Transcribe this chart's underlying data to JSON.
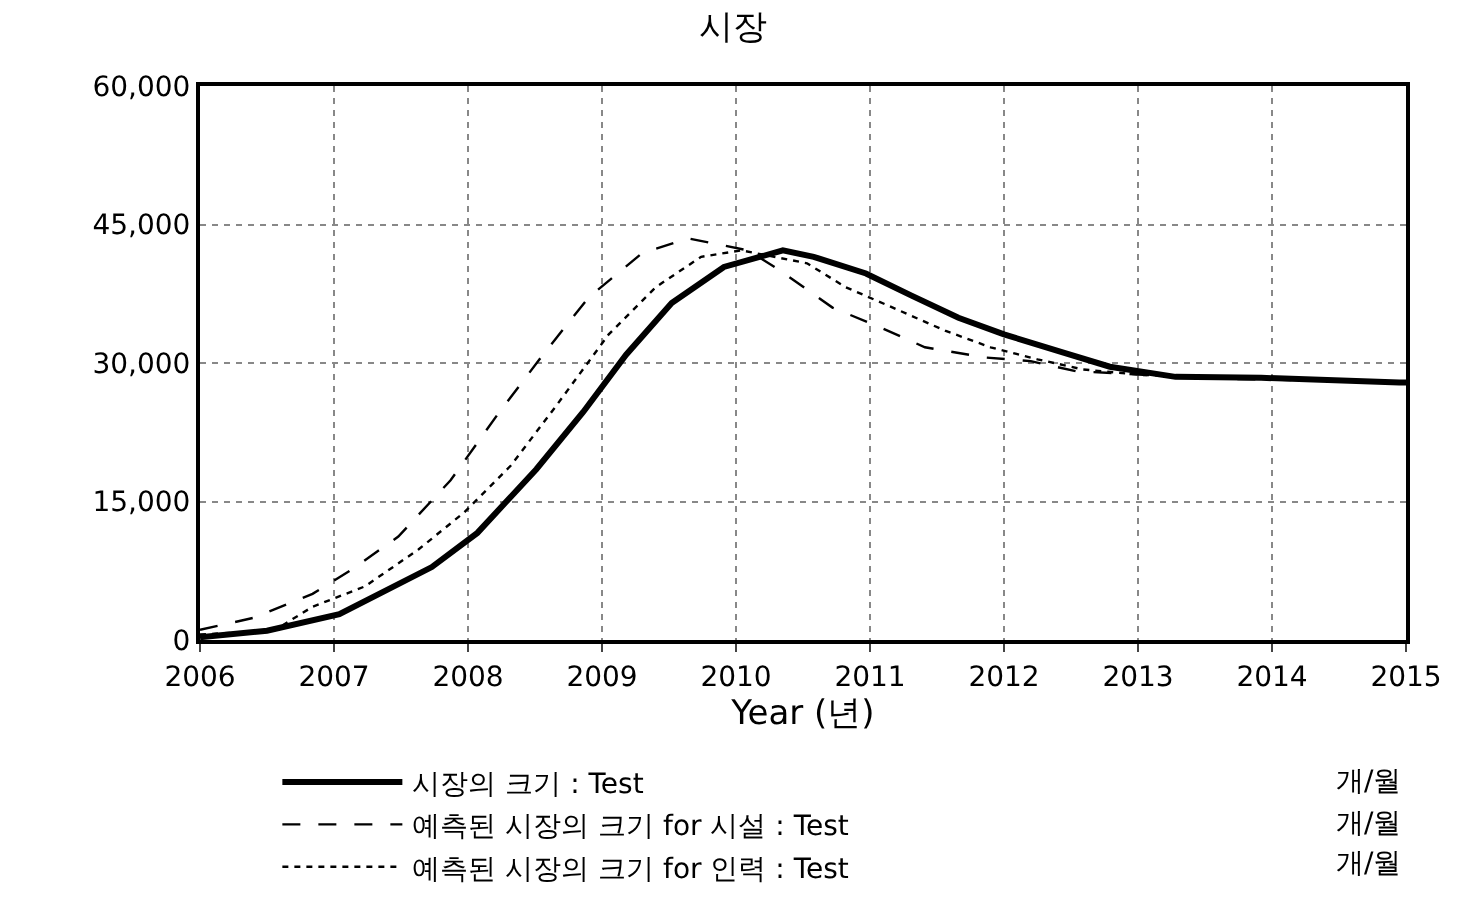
{
  "chart_data": {
    "type": "line",
    "title": "시장",
    "xlabel": "Year (년)",
    "xlim": [
      2006,
      2015
    ],
    "xticks": [
      2006,
      2007,
      2008,
      2009,
      2010,
      2011,
      2012,
      2013,
      2014,
      2015
    ],
    "ylim": [
      0,
      60000
    ],
    "yticks": [
      {
        "value": 0,
        "label": "0"
      },
      {
        "value": 15000,
        "label": "15,000"
      },
      {
        "value": 30000,
        "label": "30,000"
      },
      {
        "value": 45000,
        "label": "45,000"
      },
      {
        "value": 60000,
        "label": "60,000"
      }
    ],
    "grid": true,
    "legend": "bottom",
    "marker": "none",
    "annotations": [
      "개/월",
      "개/월",
      "개/월"
    ],
    "series": [
      {
        "name": "시장의 크기 : Test",
        "color": "#000000",
        "line_style": "solid",
        "x": [
          2006,
          2006.5,
          2007.04,
          2007.73,
          2008.07,
          2008.51,
          2008.86,
          2009.18,
          2009.52,
          2009.91,
          2010.35,
          2010.58,
          2010.97,
          2011.31,
          2011.66,
          2012.0,
          2012.45,
          2012.79,
          2013.28,
          2013.92,
          2014.95,
          2015
        ],
        "values": [
          300,
          1000,
          2800,
          7900,
          11600,
          18500,
          24700,
          30900,
          36500,
          40400,
          42200,
          41500,
          39700,
          37300,
          34900,
          33100,
          31100,
          29600,
          28500,
          28400,
          27900,
          27900
        ]
      },
      {
        "name": "예측된 시장의 크기 for 시설 : Test",
        "color": "#000000",
        "line_style": "dashed",
        "x": [
          2006,
          2006.4,
          2006.84,
          2007.14,
          2007.48,
          2007.87,
          2008.22,
          2008.56,
          2008.9,
          2009.3,
          2009.64,
          2010.09,
          2010.33,
          2010.72,
          2011.07,
          2011.41,
          2011.86,
          2012.2,
          2012.54,
          2012.84,
          2013.5,
          2014,
          2015
        ],
        "values": [
          1100,
          2400,
          5000,
          7700,
          11200,
          17300,
          24400,
          30900,
          37100,
          41900,
          43500,
          42200,
          40000,
          36000,
          33900,
          31700,
          30600,
          30200,
          29100,
          28900,
          28300,
          28200,
          27900
        ]
      },
      {
        "name": "예측된 시장의 크기 for 인력 : Test",
        "color": "#000000",
        "line_style": "dotted",
        "x": [
          2006,
          2006.55,
          2006.84,
          2007.23,
          2007.63,
          2007.97,
          2008.32,
          2008.66,
          2009.05,
          2009.4,
          2009.74,
          2010.04,
          2010.53,
          2010.82,
          2011.17,
          2011.56,
          2011.9,
          2012.25,
          2012.59,
          2013.04,
          2014,
          2015
        ],
        "values": [
          600,
          1000,
          3600,
          5800,
          9800,
          13800,
          18900,
          25400,
          33100,
          38200,
          41500,
          42200,
          40800,
          38200,
          36000,
          33500,
          31700,
          30400,
          29300,
          28700,
          28300,
          27900
        ]
      }
    ]
  }
}
